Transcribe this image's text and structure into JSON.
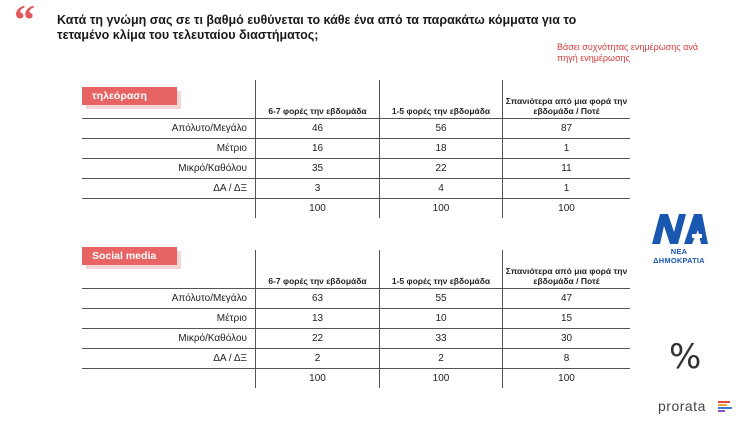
{
  "title": "Κατά τη γνώμη σας σε τι βαθμό ευθύνεται το κάθε ένα από τα παρακάτω κόμματα για το τεταμένο κλίμα του τελευταίου διαστήματος;",
  "note": "Βάσει συχνότητας ενημέρωσης ανά πηγή ενημέρωσης",
  "colors": {
    "accent": "#e86464",
    "nd_blue": "#1a57b0"
  },
  "sections": [
    {
      "label": "τηλεόραση",
      "headers": [
        "6-7 φορές την εβδομάδα",
        "1-5 φορές την εβδομάδα",
        "Σπανιότερα από μια φορά την εβδομάδα / Ποτέ"
      ],
      "rows": [
        {
          "label": "Απόλυτο/Μεγάλο",
          "values": [
            "46",
            "56",
            "87"
          ]
        },
        {
          "label": "Μέτριο",
          "values": [
            "16",
            "18",
            "1"
          ]
        },
        {
          "label": "Μικρό/Καθόλου",
          "values": [
            "35",
            "22",
            "11"
          ]
        },
        {
          "label": "ΔΑ / ΔΞ",
          "values": [
            "3",
            "4",
            "1"
          ]
        }
      ],
      "totals": [
        "100",
        "100",
        "100"
      ]
    },
    {
      "label": "Social media",
      "headers": [
        "6-7 φορές την εβδομάδα",
        "1-5 φορές την εβδομάδα",
        "Σπανιότερα από μια φορά την εβδομάδα / Ποτέ"
      ],
      "rows": [
        {
          "label": "Απόλυτο/Μεγάλο",
          "values": [
            "63",
            "55",
            "47"
          ]
        },
        {
          "label": "Μέτριο",
          "values": [
            "13",
            "10",
            "15"
          ]
        },
        {
          "label": "Μικρό/Καθόλου",
          "values": [
            "22",
            "33",
            "30"
          ]
        },
        {
          "label": "ΔΑ / ΔΞ",
          "values": [
            "2",
            "2",
            "8"
          ]
        }
      ],
      "totals": [
        "100",
        "100",
        "100"
      ]
    }
  ],
  "logo": {
    "name": "ΝΕΑ ΔΗΜΟΚΡΑΤΙΑ",
    "icon": "nd-logo-icon"
  },
  "branding": {
    "percent_mark": "%",
    "company": "prorata"
  }
}
